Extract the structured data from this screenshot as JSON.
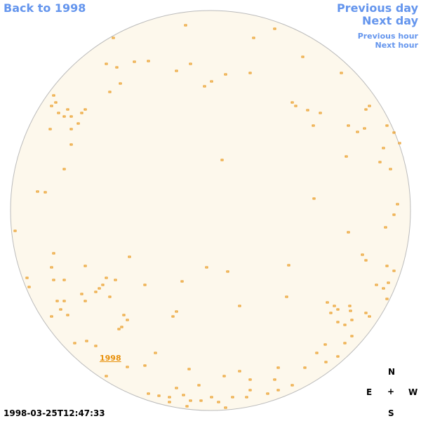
{
  "nav": {
    "back": "Back to 1998",
    "previous_day": "Previous day",
    "next_day": "Next day",
    "previous_hour": "Previous hour",
    "next_hour": "Next hour"
  },
  "image": {
    "year_link": "1998",
    "timestamp": "1998-03-25T12:47:33"
  },
  "compass": {
    "north": "N",
    "east": "E",
    "center": "+",
    "west": "W",
    "south": "S"
  }
}
